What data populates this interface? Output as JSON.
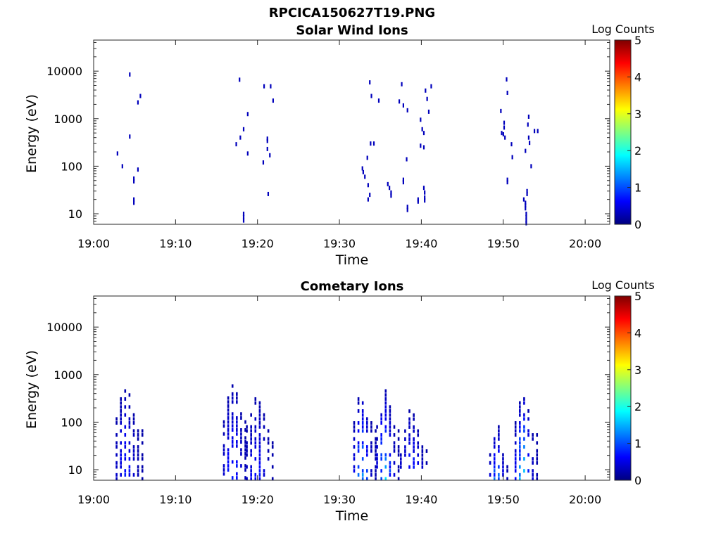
{
  "figure": {
    "title": "RPCICA150627T19.PNG"
  },
  "chart_data": [
    {
      "type": "heatmap",
      "title": "Solar Wind Ions",
      "xlabel": "Time",
      "ylabel": "Energy (eV)",
      "x_range_minutes_after_1900": [
        0,
        63
      ],
      "x_ticks": [
        "19:00",
        "19:10",
        "19:20",
        "19:30",
        "19:40",
        "19:50",
        "20:00"
      ],
      "y_scale": "log",
      "y_range": [
        6,
        45000
      ],
      "y_ticks": [
        "10",
        "100",
        "1000",
        "10000"
      ],
      "colorbar": {
        "label": "Log Counts",
        "range": [
          0,
          5
        ],
        "ticks": [
          "0",
          "1",
          "2",
          "3",
          "4",
          "5"
        ],
        "colormap": "jet"
      },
      "points": [
        {
          "t": 2.9,
          "e": 185,
          "v": 0.3
        },
        {
          "t": 3.5,
          "e": 100,
          "v": 0.3
        },
        {
          "t": 4.4,
          "e": 420,
          "v": 0.3
        },
        {
          "t": 4.4,
          "e": 8500,
          "v": 0.3
        },
        {
          "t": 4.9,
          "e": 55,
          "v": 0.3
        },
        {
          "t": 4.9,
          "e": 48,
          "v": 0.3
        },
        {
          "t": 4.9,
          "e": 20,
          "v": 0.3
        },
        {
          "t": 4.9,
          "e": 17,
          "v": 0.3
        },
        {
          "t": 5.4,
          "e": 85,
          "v": 0.3
        },
        {
          "t": 5.4,
          "e": 2200,
          "v": 0.3
        },
        {
          "t": 5.7,
          "e": 3000,
          "v": 0.3
        },
        {
          "t": 17.4,
          "e": 290,
          "v": 0.3
        },
        {
          "t": 17.8,
          "e": 6600,
          "v": 0.3
        },
        {
          "t": 17.9,
          "e": 400,
          "v": 0.3
        },
        {
          "t": 18.3,
          "e": 600,
          "v": 0.3
        },
        {
          "t": 18.3,
          "e": 10,
          "v": 0.3
        },
        {
          "t": 18.3,
          "e": 8.5,
          "v": 0.3
        },
        {
          "t": 18.3,
          "e": 7.2,
          "v": 0.3
        },
        {
          "t": 18.8,
          "e": 1250,
          "v": 0.3
        },
        {
          "t": 18.8,
          "e": 185,
          "v": 0.3
        },
        {
          "t": 20.7,
          "e": 120,
          "v": 0.3
        },
        {
          "t": 20.8,
          "e": 4800,
          "v": 0.3
        },
        {
          "t": 21.2,
          "e": 380,
          "v": 0.3
        },
        {
          "t": 21.2,
          "e": 340,
          "v": 0.3
        },
        {
          "t": 21.2,
          "e": 230,
          "v": 0.3
        },
        {
          "t": 21.3,
          "e": 26,
          "v": 0.3
        },
        {
          "t": 21.5,
          "e": 170,
          "v": 0.3
        },
        {
          "t": 21.6,
          "e": 4800,
          "v": 0.3
        },
        {
          "t": 21.9,
          "e": 2400,
          "v": 0.3
        },
        {
          "t": 32.8,
          "e": 90,
          "v": 0.3
        },
        {
          "t": 32.9,
          "e": 75,
          "v": 0.3
        },
        {
          "t": 33.1,
          "e": 60,
          "v": 0.3
        },
        {
          "t": 33.4,
          "e": 150,
          "v": 0.3
        },
        {
          "t": 33.5,
          "e": 40,
          "v": 0.3
        },
        {
          "t": 33.5,
          "e": 20,
          "v": 0.3
        },
        {
          "t": 33.7,
          "e": 25,
          "v": 0.3
        },
        {
          "t": 33.7,
          "e": 5800,
          "v": 0.3
        },
        {
          "t": 33.8,
          "e": 300,
          "v": 0.3
        },
        {
          "t": 33.9,
          "e": 3000,
          "v": 0.3
        },
        {
          "t": 34.2,
          "e": 300,
          "v": 0.3
        },
        {
          "t": 34.8,
          "e": 2400,
          "v": 0.3
        },
        {
          "t": 35.9,
          "e": 42,
          "v": 0.3
        },
        {
          "t": 36.1,
          "e": 35,
          "v": 0.3
        },
        {
          "t": 36.3,
          "e": 28,
          "v": 0.3
        },
        {
          "t": 36.3,
          "e": 24,
          "v": 0.3
        },
        {
          "t": 37.3,
          "e": 2300,
          "v": 0.3
        },
        {
          "t": 37.6,
          "e": 5300,
          "v": 0.3
        },
        {
          "t": 37.8,
          "e": 1900,
          "v": 0.3
        },
        {
          "t": 37.8,
          "e": 52,
          "v": 0.3
        },
        {
          "t": 37.8,
          "e": 46,
          "v": 0.3
        },
        {
          "t": 38.2,
          "e": 140,
          "v": 0.3
        },
        {
          "t": 38.3,
          "e": 1500,
          "v": 0.3
        },
        {
          "t": 38.3,
          "e": 14,
          "v": 0.3
        },
        {
          "t": 38.3,
          "e": 12,
          "v": 0.3
        },
        {
          "t": 39.6,
          "e": 20,
          "v": 0.3
        },
        {
          "t": 39.6,
          "e": 18,
          "v": 0.3
        },
        {
          "t": 39.9,
          "e": 270,
          "v": 0.3
        },
        {
          "t": 39.9,
          "e": 950,
          "v": 0.3
        },
        {
          "t": 40.1,
          "e": 600,
          "v": 0.3
        },
        {
          "t": 40.3,
          "e": 500,
          "v": 0.3
        },
        {
          "t": 40.3,
          "e": 250,
          "v": 0.3
        },
        {
          "t": 40.3,
          "e": 35,
          "v": 0.3
        },
        {
          "t": 40.4,
          "e": 28,
          "v": 0.3
        },
        {
          "t": 40.4,
          "e": 22,
          "v": 0.3
        },
        {
          "t": 40.4,
          "e": 19,
          "v": 0.3
        },
        {
          "t": 40.5,
          "e": 3900,
          "v": 0.3
        },
        {
          "t": 40.7,
          "e": 2600,
          "v": 0.3
        },
        {
          "t": 40.9,
          "e": 1400,
          "v": 0.3
        },
        {
          "t": 41.2,
          "e": 4800,
          "v": 0.3
        },
        {
          "t": 49.7,
          "e": 1450,
          "v": 0.3
        },
        {
          "t": 49.8,
          "e": 500,
          "v": 0.3
        },
        {
          "t": 50.0,
          "e": 470,
          "v": 0.3
        },
        {
          "t": 50.1,
          "e": 820,
          "v": 0.3
        },
        {
          "t": 50.1,
          "e": 650,
          "v": 0.3
        },
        {
          "t": 50.2,
          "e": 400,
          "v": 0.3
        },
        {
          "t": 50.4,
          "e": 6700,
          "v": 0.3
        },
        {
          "t": 50.5,
          "e": 3500,
          "v": 0.3
        },
        {
          "t": 50.5,
          "e": 52,
          "v": 0.3
        },
        {
          "t": 50.5,
          "e": 46,
          "v": 0.3
        },
        {
          "t": 51.0,
          "e": 290,
          "v": 0.3
        },
        {
          "t": 51.1,
          "e": 155,
          "v": 0.3
        },
        {
          "t": 52.5,
          "e": 20,
          "v": 0.3
        },
        {
          "t": 52.7,
          "e": 210,
          "v": 0.3
        },
        {
          "t": 52.7,
          "e": 17,
          "v": 0.3
        },
        {
          "t": 52.7,
          "e": 15,
          "v": 0.3
        },
        {
          "t": 52.7,
          "e": 13,
          "v": 0.3
        },
        {
          "t": 52.8,
          "e": 10,
          "v": 0.3
        },
        {
          "t": 52.8,
          "e": 8.5,
          "v": 0.3
        },
        {
          "t": 52.8,
          "e": 7.2,
          "v": 0.3
        },
        {
          "t": 52.8,
          "e": 6.3,
          "v": 0.3
        },
        {
          "t": 52.9,
          "e": 30,
          "v": 0.3
        },
        {
          "t": 52.9,
          "e": 26,
          "v": 0.3
        },
        {
          "t": 53.0,
          "e": 750,
          "v": 0.3
        },
        {
          "t": 53.1,
          "e": 1100,
          "v": 0.3
        },
        {
          "t": 53.1,
          "e": 400,
          "v": 0.3
        },
        {
          "t": 53.2,
          "e": 310,
          "v": 0.3
        },
        {
          "t": 53.4,
          "e": 100,
          "v": 0.3
        },
        {
          "t": 53.8,
          "e": 550,
          "v": 0.3
        },
        {
          "t": 54.2,
          "e": 550,
          "v": 0.3
        }
      ]
    },
    {
      "type": "heatmap",
      "title": "Cometary Ions",
      "xlabel": "Time",
      "ylabel": "Energy (eV)",
      "x_range_minutes_after_1900": [
        0,
        63
      ],
      "x_ticks": [
        "19:00",
        "19:10",
        "19:20",
        "19:30",
        "19:40",
        "19:50",
        "20:00"
      ],
      "y_scale": "log",
      "y_range": [
        6,
        45000
      ],
      "y_ticks": [
        "10",
        "100",
        "1000",
        "10000"
      ],
      "colorbar": {
        "label": "Log Counts",
        "range": [
          0,
          5
        ],
        "ticks": [
          "0",
          "1",
          "2",
          "3",
          "4",
          "5"
        ],
        "colormap": "jet"
      },
      "clusters": [
        {
          "t0": 2.8,
          "t1": 6.0,
          "emin": 6.2,
          "emax": 560,
          "peak": 0.6
        },
        {
          "t0": 15.9,
          "t1": 19.0,
          "emin": 6.5,
          "emax": 650,
          "peak": 0.7
        },
        {
          "t0": 18.7,
          "t1": 22.3,
          "emin": 6.2,
          "emax": 360,
          "peak": 0.5
        },
        {
          "t0": 31.8,
          "t1": 34.5,
          "emin": 6.2,
          "emax": 560,
          "peak": 1.2
        },
        {
          "t0": 34.6,
          "t1": 37.3,
          "emin": 6.2,
          "emax": 520,
          "peak": 1.3
        },
        {
          "t0": 37.5,
          "t1": 41.1,
          "emin": 11,
          "emax": 180,
          "peak": 0.6
        },
        {
          "t0": 48.4,
          "t1": 50.8,
          "emin": 6.2,
          "emax": 95,
          "peak": 1.0
        },
        {
          "t0": 51.5,
          "t1": 54.2,
          "emin": 6.2,
          "emax": 420,
          "peak": 1.6
        }
      ]
    }
  ]
}
